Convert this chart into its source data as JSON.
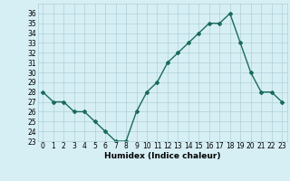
{
  "x": [
    0,
    1,
    2,
    3,
    4,
    5,
    6,
    7,
    8,
    9,
    10,
    11,
    12,
    13,
    14,
    15,
    16,
    17,
    18,
    19,
    20,
    21,
    22,
    23
  ],
  "y": [
    28,
    27,
    27,
    26,
    26,
    25,
    24,
    23,
    23,
    26,
    28,
    29,
    31,
    32,
    33,
    34,
    35,
    35,
    36,
    33,
    30,
    28,
    28,
    27
  ],
  "line_color": "#1a6b5a",
  "marker": "D",
  "marker_size": 2.0,
  "bg_color": "#d6eff5",
  "grid_color": "#b0cfd8",
  "xlabel": "Humidex (Indice chaleur)",
  "xlim": [
    -0.5,
    23.5
  ],
  "ylim": [
    23,
    37
  ],
  "yticks": [
    23,
    24,
    25,
    26,
    27,
    28,
    29,
    30,
    31,
    32,
    33,
    34,
    35,
    36
  ],
  "xticks": [
    0,
    1,
    2,
    3,
    4,
    5,
    6,
    7,
    8,
    9,
    10,
    11,
    12,
    13,
    14,
    15,
    16,
    17,
    18,
    19,
    20,
    21,
    22,
    23
  ],
  "tick_fontsize": 5.5,
  "xlabel_fontsize": 6.5,
  "linewidth": 1.0
}
